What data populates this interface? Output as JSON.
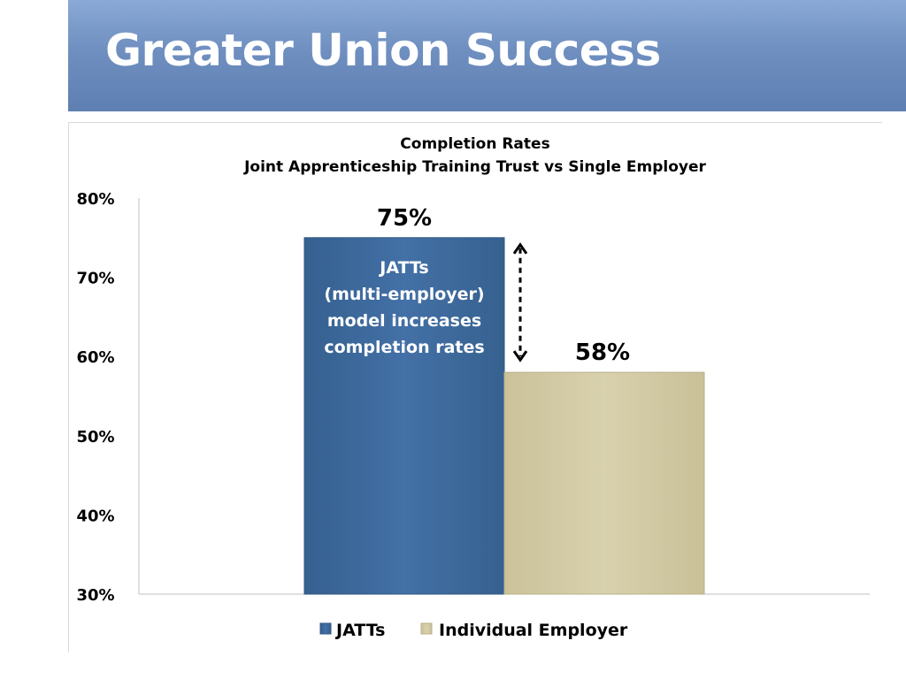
{
  "slide": {
    "title": "Greater Union Success"
  },
  "colors": {
    "title_bar": "#6f8fc0",
    "jatts": "#3e6a9e",
    "individual_employer": "#d4ccA3"
  },
  "chart_data": {
    "type": "bar",
    "title": "Completion Rates",
    "subtitle": "Joint Apprenticeship Training Trust vs Single Employer",
    "ylim": [
      30,
      80
    ],
    "yticks": [
      "30%",
      "40%",
      "50%",
      "60%",
      "70%",
      "80%"
    ],
    "ytick_values": [
      30,
      40,
      50,
      60,
      70,
      80
    ],
    "grid": false,
    "legend_position": "bottom",
    "series": [
      {
        "name": "JATTs",
        "value": 75,
        "label": "75%",
        "color": "#3e6a9e"
      },
      {
        "name": "Individual Employer",
        "value": 58,
        "label": "58%",
        "color": "#d4cca3"
      }
    ],
    "annotation": {
      "lines": [
        "JATTs",
        "(multi-employer)",
        "model increases",
        "completion rates"
      ],
      "arrow": "double-headed dashed arrow between 75% and 58%"
    }
  }
}
